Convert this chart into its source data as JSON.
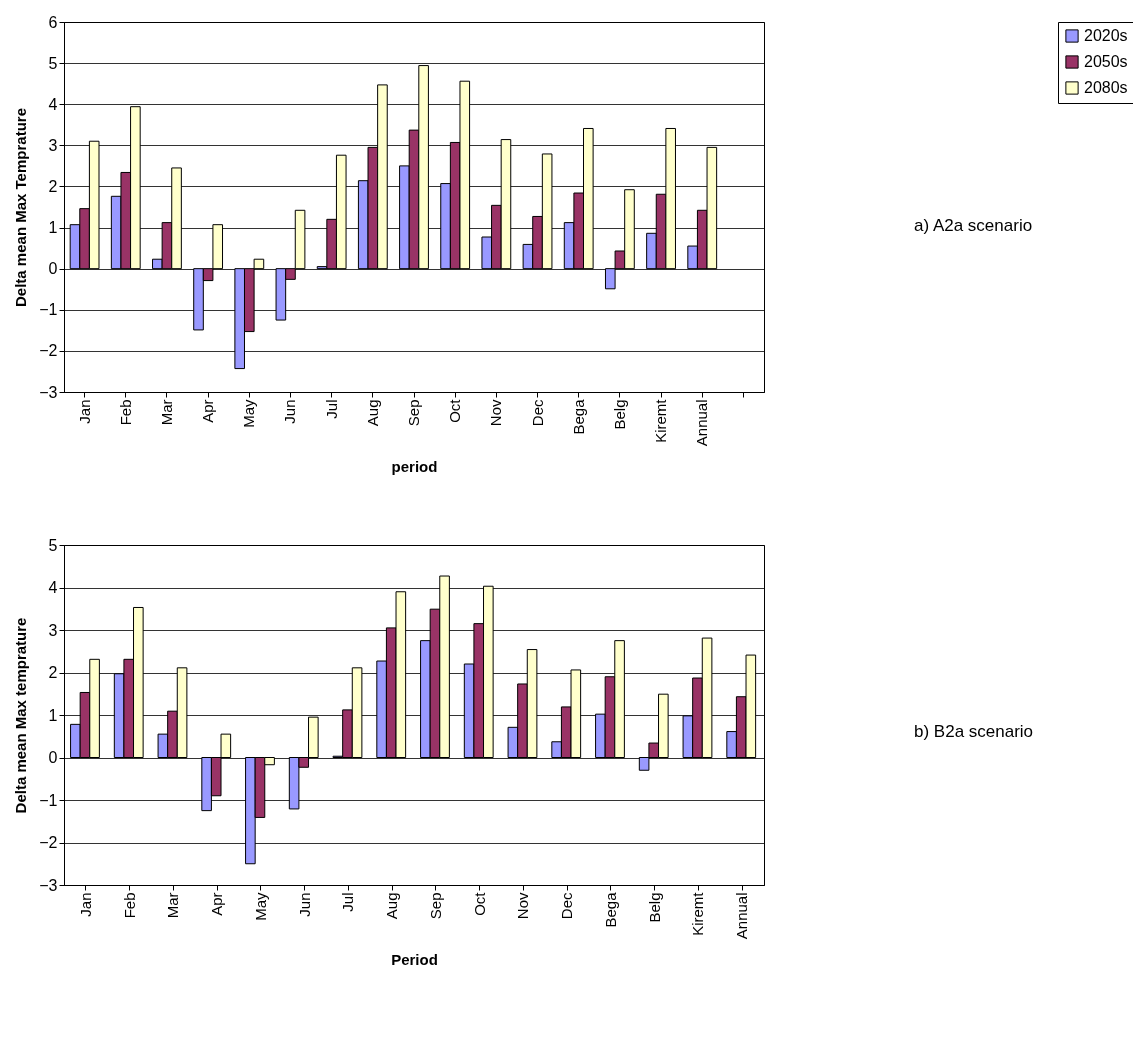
{
  "chart_data": [
    {
      "type": "bar",
      "xlabel": "period",
      "ylabel": "Delta mean Max Temprature",
      "categories": [
        "Jan",
        "Feb",
        "Mar",
        "Apr",
        "May",
        "Jun",
        "Jul",
        "Aug",
        "Sep",
        "Oct",
        "Nov",
        "Dec",
        "Bega",
        "Belg",
        "Kiremt",
        "Annual",
        null
      ],
      "series": [
        {
          "name": "2020s",
          "color": "#9999ff",
          "values": [
            1.07,
            1.76,
            0.23,
            -1.49,
            -2.43,
            -1.25,
            0.05,
            2.14,
            2.5,
            2.07,
            0.77,
            0.59,
            1.12,
            -0.49,
            0.86,
            0.55,
            null
          ]
        },
        {
          "name": "2050s",
          "color": "#993366",
          "values": [
            1.46,
            2.34,
            1.12,
            -0.29,
            -1.53,
            -0.26,
            1.2,
            2.95,
            3.37,
            3.07,
            1.54,
            1.27,
            1.84,
            0.43,
            1.81,
            1.42,
            null
          ]
        },
        {
          "name": "2080s",
          "color": "#ffffcc",
          "values": [
            3.1,
            3.94,
            2.45,
            1.07,
            0.23,
            1.42,
            2.76,
            4.47,
            4.94,
            4.56,
            3.14,
            2.79,
            3.41,
            1.92,
            3.41,
            2.95,
            null
          ]
        }
      ],
      "ylim": [
        -3,
        6
      ],
      "yticks": [
        -3,
        -2,
        -1,
        0,
        1,
        2,
        3,
        4,
        5,
        6
      ],
      "grid": "y",
      "legend": "right",
      "annotations": [
        "a)    A2a scenario"
      ]
    },
    {
      "type": "bar",
      "xlabel": "Period",
      "ylabel": "Delta mean Max temprature",
      "categories": [
        "Jan",
        "Feb",
        "Mar",
        "Apr",
        "May",
        "Jun",
        "Jul",
        "Aug",
        "Sep",
        "Oct",
        "Nov",
        "Dec",
        "Bega",
        "Belg",
        "Kiremt",
        "Annual"
      ],
      "series": [
        {
          "name": "2020s",
          "color": "#9999ff",
          "values": [
            0.78,
            1.97,
            0.55,
            -1.25,
            -2.5,
            -1.21,
            0.03,
            2.27,
            2.75,
            2.2,
            0.71,
            0.37,
            1.02,
            -0.3,
            0.98,
            0.61
          ]
        },
        {
          "name": "2050s",
          "color": "#993366",
          "values": [
            1.53,
            2.31,
            1.09,
            -0.9,
            -1.41,
            -0.23,
            1.12,
            3.05,
            3.49,
            3.15,
            1.73,
            1.19,
            1.9,
            0.34,
            1.87,
            1.43
          ]
        },
        {
          "name": "2080s",
          "color": "#ffffcc",
          "values": [
            2.31,
            3.53,
            2.11,
            0.55,
            -0.17,
            0.95,
            2.11,
            3.9,
            4.27,
            4.03,
            2.54,
            2.06,
            2.75,
            1.49,
            2.81,
            2.41
          ]
        }
      ],
      "ylim": [
        -3,
        5
      ],
      "yticks": [
        -3,
        -2,
        -1,
        0,
        1,
        2,
        3,
        4,
        5
      ],
      "grid": "y",
      "legend": "right",
      "annotations": [
        "b) B2a scenario"
      ]
    }
  ]
}
